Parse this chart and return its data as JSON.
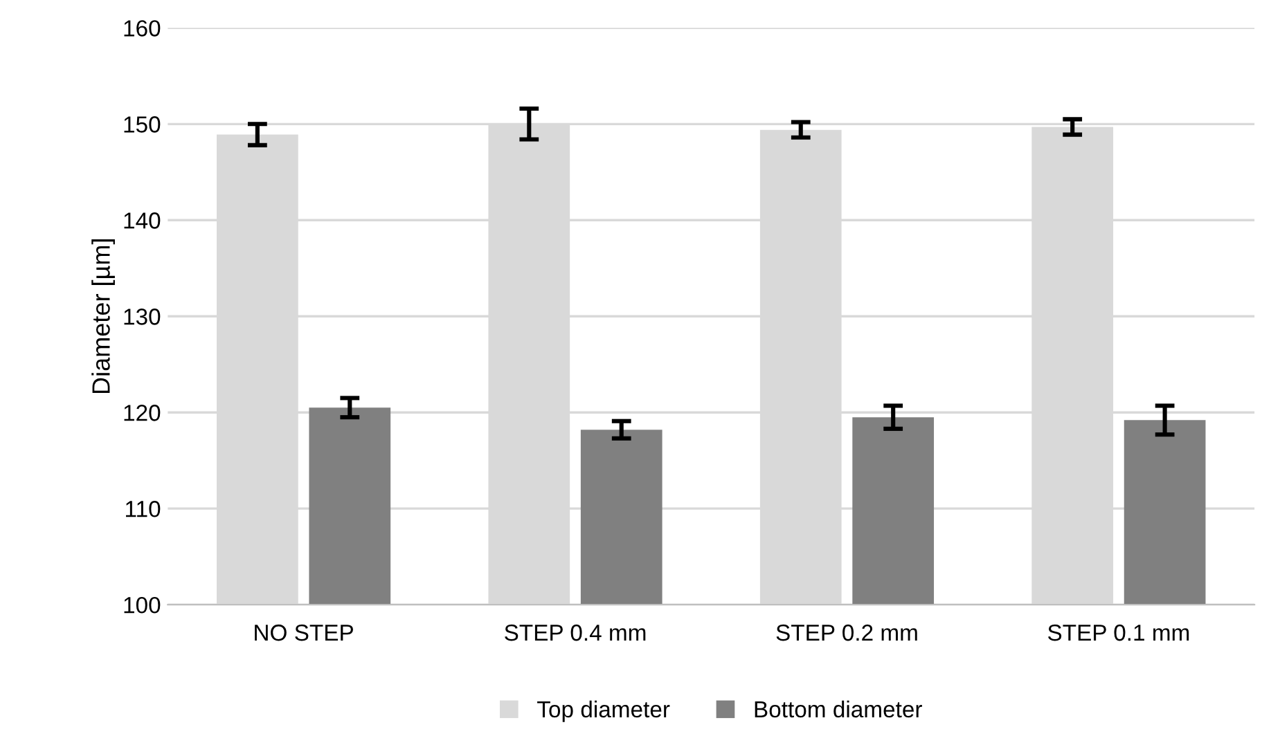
{
  "chart_data": {
    "type": "bar",
    "ylabel": "Diameter [µm]",
    "categories": [
      "NO STEP",
      "STEP 0.4 mm",
      "STEP 0.2 mm",
      "STEP 0.1 mm"
    ],
    "series": [
      {
        "name": "Top diameter",
        "color": "#d9d9d9",
        "values": [
          148.9,
          150.0,
          149.4,
          149.7
        ],
        "errors": [
          1.1,
          1.6,
          0.8,
          0.8
        ]
      },
      {
        "name": "Bottom diameter",
        "color": "#808080",
        "values": [
          120.5,
          118.2,
          119.5,
          119.2
        ],
        "errors": [
          1.0,
          0.9,
          1.2,
          1.5
        ]
      }
    ],
    "ylim": [
      100,
      160
    ],
    "yticks": [
      100,
      110,
      120,
      130,
      140,
      150,
      160
    ],
    "grid": "y",
    "legend": "bottom"
  }
}
